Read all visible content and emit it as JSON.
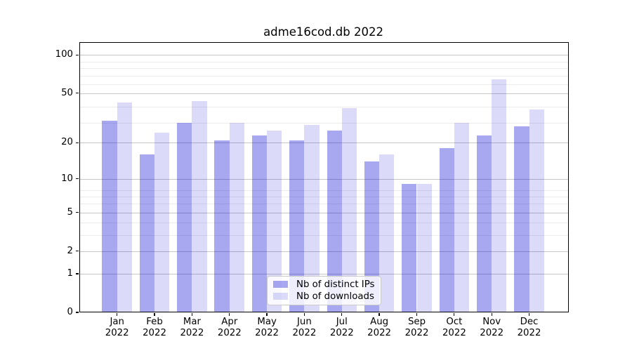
{
  "chart_data": {
    "type": "bar",
    "title": "adme16cod.db 2022",
    "categories": [
      "Jan",
      "Feb",
      "Mar",
      "Apr",
      "May",
      "Jun",
      "Jul",
      "Aug",
      "Sep",
      "Oct",
      "Nov",
      "Dec"
    ],
    "category_year": "2022",
    "series": [
      {
        "name": "Nb of distinct IPs",
        "key": "distinct-ips",
        "color": "rgba(0,0,210,0.34)",
        "values": [
          30,
          16,
          29,
          21,
          23,
          21,
          25,
          14,
          9,
          18,
          23,
          27
        ]
      },
      {
        "name": "Nb of downloads",
        "key": "downloads",
        "color": "rgba(0,0,210,0.14)",
        "values": [
          42,
          24,
          43,
          29,
          25,
          28,
          38,
          16,
          9,
          29,
          64,
          37
        ]
      }
    ],
    "xlabel": "",
    "ylabel": "",
    "yscale": "log1p",
    "yticks": [
      100,
      50,
      20,
      10,
      5,
      2,
      1,
      0
    ],
    "ylim": [
      0,
      127
    ],
    "grid": true,
    "legend_position": "lower center"
  }
}
